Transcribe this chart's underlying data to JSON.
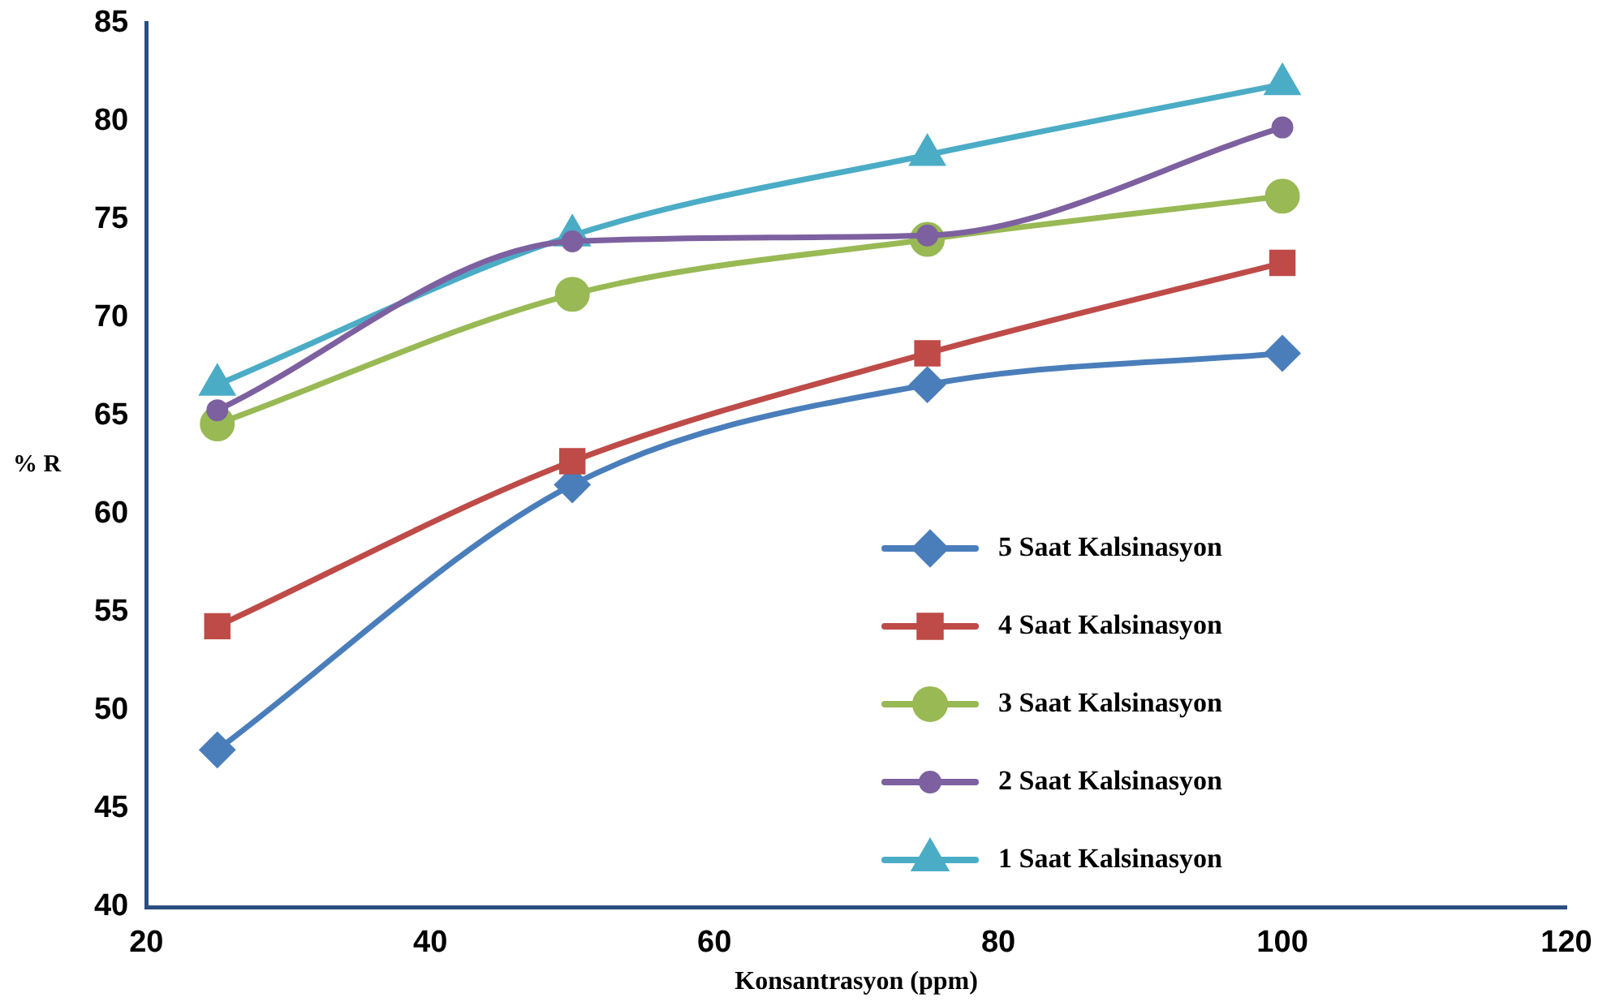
{
  "chart_data": {
    "type": "line",
    "xlabel": "Konsantrasyon (ppm)",
    "ylabel": "% R",
    "x": [
      25,
      50,
      75,
      100
    ],
    "xlim": [
      20,
      120
    ],
    "xticks": [
      20,
      40,
      60,
      80,
      100,
      120
    ],
    "ylim": [
      40,
      85
    ],
    "yticks": [
      40,
      45,
      50,
      55,
      60,
      65,
      70,
      75,
      80,
      85
    ],
    "grid": false,
    "legend": "bottom right",
    "series": [
      {
        "name": "5 Saat Kalsinasyon",
        "color": "#4a7ebb",
        "marker": "diamond",
        "values": [
          48.0,
          61.5,
          66.6,
          68.2
        ]
      },
      {
        "name": "4 Saat Kalsinasyon",
        "color": "#be4b48",
        "marker": "square",
        "values": [
          54.3,
          62.7,
          68.2,
          72.8
        ]
      },
      {
        "name": "3 Saat Kalsinasyon",
        "color": "#98b954",
        "marker": "circle",
        "values": [
          64.6,
          71.2,
          74.0,
          76.2
        ]
      },
      {
        "name": "2 Saat Kalsinasyon",
        "color": "#7d60a0",
        "marker": "circle",
        "values": [
          65.3,
          73.9,
          74.2,
          79.7
        ]
      },
      {
        "name": "1 Saat Kalsinasyon",
        "color": "#4bacc6",
        "marker": "triangle",
        "values": [
          66.6,
          74.2,
          78.3,
          81.9
        ]
      }
    ]
  }
}
